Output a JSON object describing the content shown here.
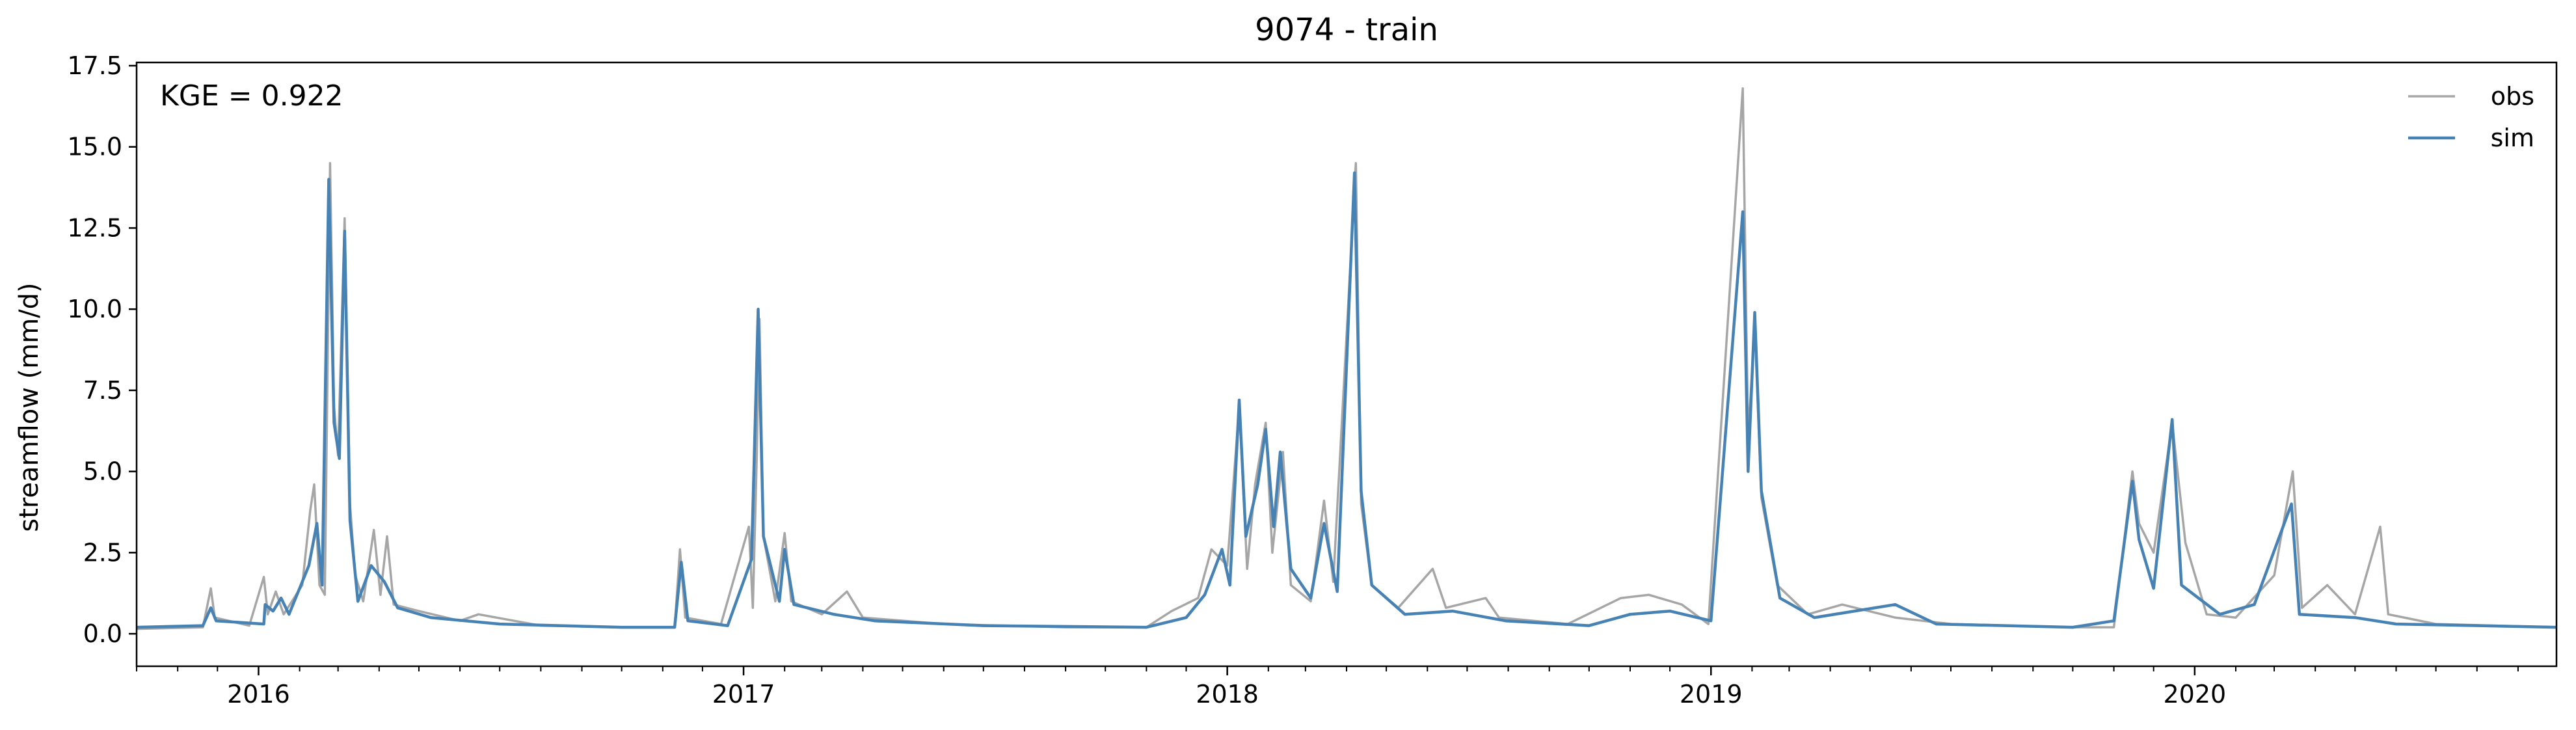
{
  "chart_data": {
    "type": "line",
    "title": "9074 - train",
    "xlabel": "",
    "ylabel": "streamflow (mm/d)",
    "xlim": [
      "2015-10-01",
      "2020-09-30"
    ],
    "ylim": [
      -1.0,
      17.6
    ],
    "yticks": [
      0.0,
      2.5,
      5.0,
      7.5,
      10.0,
      12.5,
      15.0,
      17.5
    ],
    "ytick_labels": [
      "0.0",
      "2.5",
      "5.0",
      "7.5",
      "10.0",
      "12.5",
      "15.0",
      "17.5"
    ],
    "xticks": [
      "2016-01-01",
      "2017-01-01",
      "2018-01-01",
      "2019-01-01",
      "2020-01-01"
    ],
    "xtick_labels": [
      "2016",
      "2017",
      "2018",
      "2019",
      "2020"
    ],
    "grid": false,
    "legend_position": "top-right",
    "annotation": "KGE = 0.922",
    "series": [
      {
        "name": "obs",
        "color": "#a6a6a6",
        "points": [
          [
            "2015-10-01",
            0.15
          ],
          [
            "2015-11-20",
            0.2
          ],
          [
            "2015-11-26",
            1.4
          ],
          [
            "2015-11-29",
            0.5
          ],
          [
            "2015-12-25",
            0.25
          ],
          [
            "2016-01-05",
            1.75
          ],
          [
            "2016-01-08",
            0.6
          ],
          [
            "2016-01-14",
            1.3
          ],
          [
            "2016-01-20",
            0.6
          ],
          [
            "2016-02-03",
            1.5
          ],
          [
            "2016-02-09",
            3.8
          ],
          [
            "2016-02-12",
            4.6
          ],
          [
            "2016-02-16",
            1.5
          ],
          [
            "2016-02-20",
            1.2
          ],
          [
            "2016-02-24",
            14.5
          ],
          [
            "2016-02-27",
            7.0
          ],
          [
            "2016-03-01",
            5.5
          ],
          [
            "2016-03-06",
            12.8
          ],
          [
            "2016-03-10",
            4.0
          ],
          [
            "2016-03-14",
            1.8
          ],
          [
            "2016-03-20",
            1.0
          ],
          [
            "2016-03-28",
            3.2
          ],
          [
            "2016-04-02",
            1.2
          ],
          [
            "2016-04-07",
            3.0
          ],
          [
            "2016-04-12",
            0.9
          ],
          [
            "2016-05-01",
            0.7
          ],
          [
            "2016-06-01",
            0.4
          ],
          [
            "2016-06-15",
            0.6
          ],
          [
            "2016-08-01",
            0.25
          ],
          [
            "2016-10-01",
            0.2
          ],
          [
            "2016-11-10",
            0.2
          ],
          [
            "2016-11-14",
            2.6
          ],
          [
            "2016-11-18",
            0.5
          ],
          [
            "2016-12-15",
            0.3
          ],
          [
            "2017-01-05",
            3.3
          ],
          [
            "2017-01-08",
            0.8
          ],
          [
            "2017-01-11",
            5.5
          ],
          [
            "2017-01-13",
            9.7
          ],
          [
            "2017-01-16",
            3.0
          ],
          [
            "2017-01-25",
            1.0
          ],
          [
            "2017-02-01",
            3.1
          ],
          [
            "2017-02-06",
            1.0
          ],
          [
            "2017-03-01",
            0.6
          ],
          [
            "2017-03-20",
            1.3
          ],
          [
            "2017-04-01",
            0.5
          ],
          [
            "2017-06-01",
            0.3
          ],
          [
            "2017-09-01",
            0.2
          ],
          [
            "2017-11-01",
            0.2
          ],
          [
            "2017-11-20",
            0.7
          ],
          [
            "2017-12-10",
            1.1
          ],
          [
            "2017-12-20",
            2.6
          ],
          [
            "2018-01-01",
            2.1
          ],
          [
            "2018-01-10",
            7.0
          ],
          [
            "2018-01-16",
            2.0
          ],
          [
            "2018-01-22",
            4.6
          ],
          [
            "2018-01-30",
            6.5
          ],
          [
            "2018-02-04",
            2.5
          ],
          [
            "2018-02-12",
            5.6
          ],
          [
            "2018-02-18",
            1.5
          ],
          [
            "2018-03-05",
            1.0
          ],
          [
            "2018-03-15",
            4.1
          ],
          [
            "2018-03-22",
            1.6
          ],
          [
            "2018-04-08",
            14.5
          ],
          [
            "2018-04-12",
            4.0
          ],
          [
            "2018-04-20",
            1.5
          ],
          [
            "2018-05-10",
            0.8
          ],
          [
            "2018-06-05",
            2.0
          ],
          [
            "2018-06-15",
            0.8
          ],
          [
            "2018-07-15",
            1.1
          ],
          [
            "2018-07-25",
            0.5
          ],
          [
            "2018-09-15",
            0.3
          ],
          [
            "2018-10-25",
            1.1
          ],
          [
            "2018-11-15",
            1.2
          ],
          [
            "2018-12-10",
            0.9
          ],
          [
            "2018-12-30",
            0.3
          ],
          [
            "2019-01-25",
            16.8
          ],
          [
            "2019-01-29",
            6.0
          ],
          [
            "2019-02-03",
            9.5
          ],
          [
            "2019-02-08",
            4.2
          ],
          [
            "2019-02-20",
            1.5
          ],
          [
            "2019-03-15",
            0.6
          ],
          [
            "2019-04-10",
            0.9
          ],
          [
            "2019-05-20",
            0.5
          ],
          [
            "2019-07-01",
            0.3
          ],
          [
            "2019-10-01",
            0.2
          ],
          [
            "2019-11-01",
            0.2
          ],
          [
            "2019-11-15",
            5.0
          ],
          [
            "2019-11-20",
            3.4
          ],
          [
            "2019-12-01",
            2.5
          ],
          [
            "2019-12-15",
            6.5
          ],
          [
            "2019-12-25",
            2.8
          ],
          [
            "2020-01-10",
            0.6
          ],
          [
            "2020-02-01",
            0.5
          ],
          [
            "2020-03-01",
            1.8
          ],
          [
            "2020-03-15",
            5.0
          ],
          [
            "2020-03-22",
            0.8
          ],
          [
            "2020-04-10",
            1.5
          ],
          [
            "2020-05-01",
            0.6
          ],
          [
            "2020-05-20",
            3.3
          ],
          [
            "2020-05-26",
            0.6
          ],
          [
            "2020-07-01",
            0.3
          ],
          [
            "2020-09-30",
            0.2
          ]
        ]
      },
      {
        "name": "sim",
        "color": "#4682b4",
        "points": [
          [
            "2015-10-01",
            0.2
          ],
          [
            "2015-11-20",
            0.25
          ],
          [
            "2015-11-26",
            0.8
          ],
          [
            "2015-11-30",
            0.4
          ],
          [
            "2016-01-05",
            0.3
          ],
          [
            "2016-01-06",
            0.9
          ],
          [
            "2016-01-12",
            0.7
          ],
          [
            "2016-01-18",
            1.1
          ],
          [
            "2016-01-24",
            0.6
          ],
          [
            "2016-02-08",
            2.1
          ],
          [
            "2016-02-14",
            3.4
          ],
          [
            "2016-02-18",
            1.5
          ],
          [
            "2016-02-23",
            14.0
          ],
          [
            "2016-02-27",
            6.5
          ],
          [
            "2016-03-02",
            5.4
          ],
          [
            "2016-03-06",
            12.4
          ],
          [
            "2016-03-10",
            3.5
          ],
          [
            "2016-03-16",
            1.0
          ],
          [
            "2016-03-26",
            2.1
          ],
          [
            "2016-04-05",
            1.6
          ],
          [
            "2016-04-15",
            0.8
          ],
          [
            "2016-05-10",
            0.5
          ],
          [
            "2016-07-01",
            0.3
          ],
          [
            "2016-10-01",
            0.2
          ],
          [
            "2016-11-10",
            0.2
          ],
          [
            "2016-11-15",
            2.2
          ],
          [
            "2016-11-20",
            0.4
          ],
          [
            "2016-12-20",
            0.25
          ],
          [
            "2017-01-07",
            2.3
          ],
          [
            "2017-01-12",
            10.0
          ],
          [
            "2017-01-16",
            3.0
          ],
          [
            "2017-01-28",
            1.0
          ],
          [
            "2017-02-01",
            2.6
          ],
          [
            "2017-02-08",
            0.9
          ],
          [
            "2017-03-10",
            0.6
          ],
          [
            "2017-04-10",
            0.4
          ],
          [
            "2017-07-01",
            0.25
          ],
          [
            "2017-11-01",
            0.2
          ],
          [
            "2017-12-01",
            0.5
          ],
          [
            "2017-12-15",
            1.2
          ],
          [
            "2017-12-28",
            2.6
          ],
          [
            "2018-01-03",
            1.5
          ],
          [
            "2018-01-10",
            7.2
          ],
          [
            "2018-01-15",
            3.0
          ],
          [
            "2018-01-24",
            4.6
          ],
          [
            "2018-01-30",
            6.3
          ],
          [
            "2018-02-05",
            3.3
          ],
          [
            "2018-02-10",
            5.6
          ],
          [
            "2018-02-18",
            2.0
          ],
          [
            "2018-03-05",
            1.1
          ],
          [
            "2018-03-15",
            3.4
          ],
          [
            "2018-03-25",
            1.3
          ],
          [
            "2018-04-07",
            14.2
          ],
          [
            "2018-04-12",
            4.4
          ],
          [
            "2018-04-20",
            1.5
          ],
          [
            "2018-05-15",
            0.6
          ],
          [
            "2018-06-20",
            0.7
          ],
          [
            "2018-07-30",
            0.4
          ],
          [
            "2018-10-01",
            0.25
          ],
          [
            "2018-11-01",
            0.6
          ],
          [
            "2018-12-01",
            0.7
          ],
          [
            "2019-01-01",
            0.4
          ],
          [
            "2019-01-25",
            13.0
          ],
          [
            "2019-01-29",
            5.0
          ],
          [
            "2019-02-03",
            9.9
          ],
          [
            "2019-02-08",
            4.4
          ],
          [
            "2019-02-22",
            1.1
          ],
          [
            "2019-03-20",
            0.5
          ],
          [
            "2019-05-20",
            0.9
          ],
          [
            "2019-06-20",
            0.3
          ],
          [
            "2019-10-01",
            0.2
          ],
          [
            "2019-11-01",
            0.4
          ],
          [
            "2019-11-15",
            4.7
          ],
          [
            "2019-11-20",
            2.9
          ],
          [
            "2019-12-01",
            1.4
          ],
          [
            "2019-12-15",
            6.6
          ],
          [
            "2019-12-22",
            1.5
          ],
          [
            "2020-01-20",
            0.6
          ],
          [
            "2020-02-15",
            0.9
          ],
          [
            "2020-03-14",
            4.0
          ],
          [
            "2020-03-20",
            0.6
          ],
          [
            "2020-05-01",
            0.5
          ],
          [
            "2020-06-01",
            0.3
          ],
          [
            "2020-09-30",
            0.2
          ]
        ]
      }
    ]
  }
}
